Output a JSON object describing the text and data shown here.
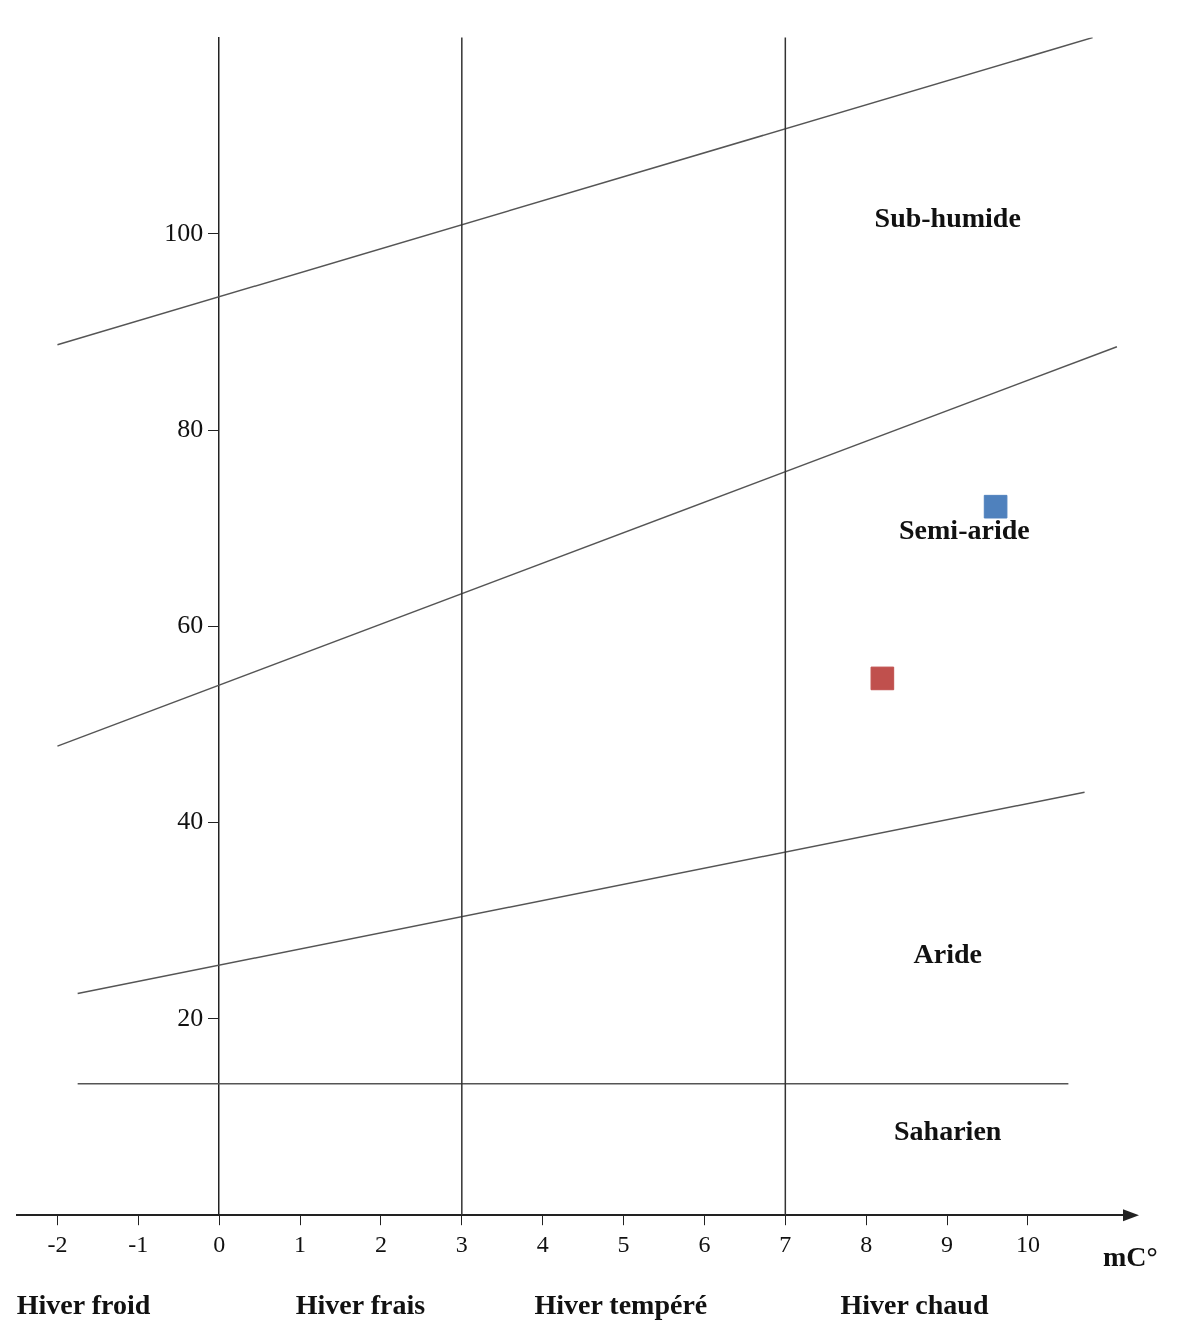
{
  "chart_data": {
    "type": "scatter",
    "xlabel": "mC°",
    "xlim": [
      -2.5,
      11.2
    ],
    "xticks": [
      -2,
      -1,
      0,
      1,
      2,
      3,
      4,
      5,
      6,
      7,
      8,
      9,
      10
    ],
    "ylim": [
      0,
      120
    ],
    "yticks": [
      20,
      40,
      60,
      80,
      100
    ],
    "grid": false,
    "legend": false,
    "series": [
      {
        "type": "line",
        "color": "#555555",
        "x": [
          -2,
          10.8
        ],
        "values": [
          88.7,
          120
        ]
      },
      {
        "type": "line",
        "color": "#555555",
        "x": [
          -2,
          11.1
        ],
        "values": [
          47.8,
          88.5
        ]
      },
      {
        "type": "line",
        "color": "#555555",
        "x": [
          -1.75,
          10.7
        ],
        "values": [
          22.6,
          43.1
        ]
      },
      {
        "type": "line",
        "color": "#555555",
        "x": [
          -1.75,
          10.5
        ],
        "values": [
          13.4,
          13.4
        ]
      },
      {
        "type": "scatter",
        "marker": "square",
        "color": "#4f81bd",
        "x": [
          9.6
        ],
        "values": [
          72.2
        ]
      },
      {
        "type": "scatter",
        "marker": "square",
        "color": "#c0504d",
        "x": [
          8.2
        ],
        "values": [
          54.7
        ]
      }
    ],
    "ref_lines": [
      {
        "axis": "x",
        "value": 3,
        "color": "#333333"
      },
      {
        "axis": "x",
        "value": 7,
        "color": "#333333"
      }
    ],
    "annotations": [
      "Sub-humide",
      "Semi-aride",
      "Aride",
      "Saharien",
      "Hiver froid",
      "Hiver frais",
      "Hiver tempéré",
      "Hiver chaud"
    ]
  }
}
